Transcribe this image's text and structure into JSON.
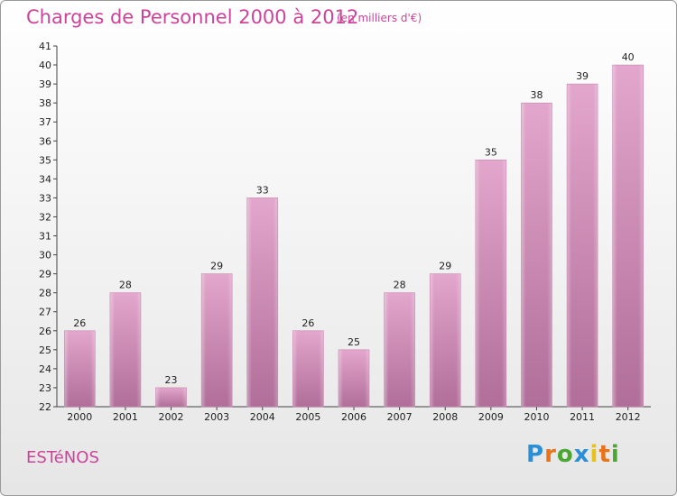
{
  "header": {
    "title": "Charges de Personnel 2000 à 2012",
    "subtitle": "(en milliers d'€)"
  },
  "footer": {
    "town": "ESTéNOS",
    "brand_letters": [
      {
        "ch": "P",
        "color": "#2a8fd6"
      },
      {
        "ch": "r",
        "color": "#e8731a"
      },
      {
        "ch": "o",
        "color": "#4aa832"
      },
      {
        "ch": "x",
        "color": "#2a8fd6"
      },
      {
        "ch": "i",
        "color": "#e8c21a"
      },
      {
        "ch": "t",
        "color": "#e8731a"
      },
      {
        "ch": "i",
        "color": "#4aa832"
      }
    ]
  },
  "chart_data": {
    "type": "bar",
    "categories": [
      "2000",
      "2001",
      "2002",
      "2003",
      "2004",
      "2005",
      "2006",
      "2007",
      "2008",
      "2009",
      "2010",
      "2011",
      "2012"
    ],
    "values": [
      26,
      28,
      23,
      29,
      33,
      26,
      25,
      28,
      29,
      35,
      38,
      39,
      40
    ],
    "title": "Charges de Personnel 2000 à 2012",
    "subtitle": "(en milliers d'€)",
    "ylim": [
      22,
      41
    ],
    "yticks": [
      22,
      23,
      24,
      25,
      26,
      27,
      28,
      29,
      30,
      31,
      32,
      33,
      34,
      35,
      36,
      37,
      38,
      39,
      40,
      41
    ],
    "grid": false,
    "bar_color": "#d98fbc"
  }
}
